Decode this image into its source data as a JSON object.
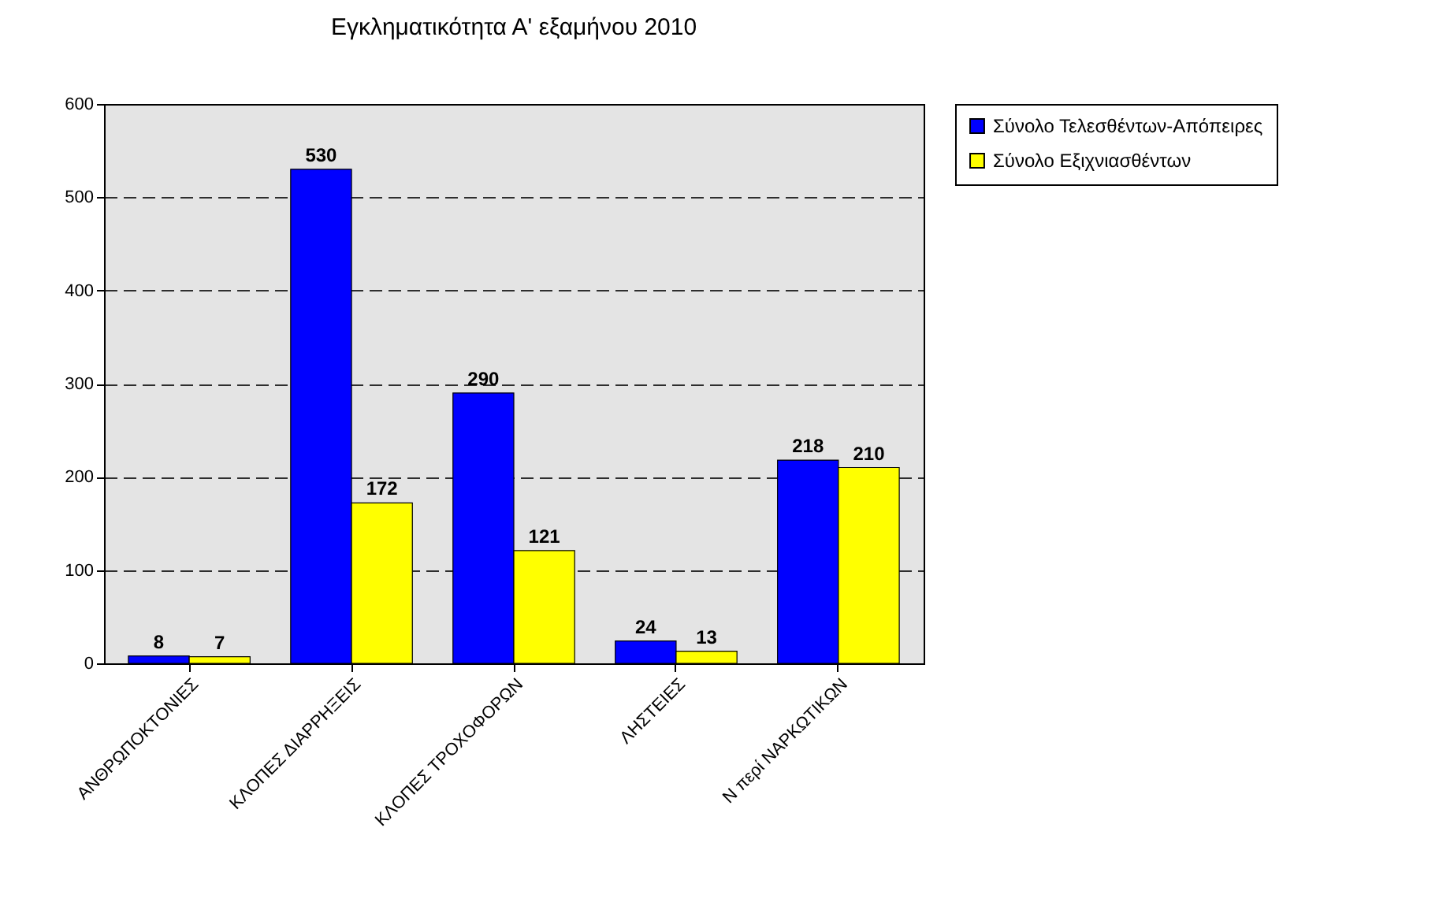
{
  "chart_data": {
    "type": "bar",
    "title": "Εγκληματικότητα Α' εξαμήνου 2010",
    "categories": [
      "ΑΝΘΡΩΠΟΚΤΟΝΙΕΣ",
      "ΚΛΟΠΕΣ ΔΙΑΡΡΗΞΕΙΣ",
      "ΚΛΟΠΕΣ ΤΡΟΧΟΦΟΡΩΝ",
      "ΛΗΣΤΕΙΕΣ",
      "Ν περί ΝΑΡΚΩΤΙΚΩΝ"
    ],
    "series": [
      {
        "name": "Σύνολο Τελεσθέντων-Απόπειρες",
        "color": "#0000ff",
        "values": [
          8,
          530,
          290,
          24,
          218
        ]
      },
      {
        "name": "Σύνολο Εξιχνιασθέντων",
        "color": "#ffff00",
        "values": [
          7,
          172,
          121,
          13,
          210
        ]
      }
    ],
    "ylim": [
      0,
      600
    ],
    "yticks": [
      0,
      100,
      200,
      300,
      400,
      500,
      600
    ],
    "grid": "y",
    "legend": "right",
    "data_labels": true
  }
}
